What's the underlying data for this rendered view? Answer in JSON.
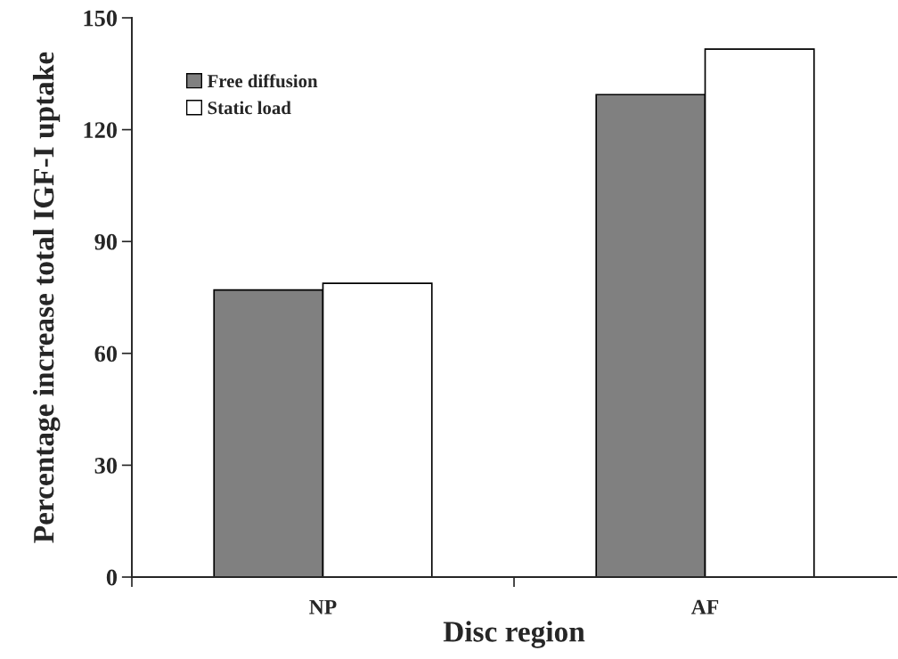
{
  "chart_data": {
    "type": "bar",
    "xlabel": "Disc region",
    "ylabel": "Percentage increase total IGF-I uptake",
    "categories": [
      "NP",
      "AF"
    ],
    "series": [
      {
        "name": "Free diffusion",
        "color": "#808080",
        "values": [
          77,
          129.4
        ]
      },
      {
        "name": "Static load",
        "color": "#ffffff",
        "values": [
          78.8,
          141.6
        ]
      }
    ],
    "ylim": [
      0,
      150
    ],
    "yticks": [
      0,
      30,
      60,
      90,
      120,
      150
    ],
    "grid": false,
    "legend": "top left"
  }
}
